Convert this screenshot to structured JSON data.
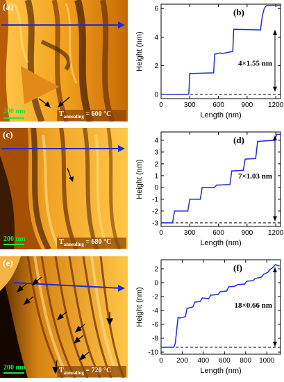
{
  "panels": [
    {
      "afm_label": "(a)",
      "plot_label": "(b)",
      "scale_bar": "200 nm",
      "temp_prefix": "T",
      "temp_sub": "annealing",
      "temp_value": "= 600 °C",
      "step_annotation": "4×1.55 nm"
    },
    {
      "afm_label": "(c)",
      "plot_label": "(d)",
      "scale_bar": "200 nm",
      "temp_prefix": "T",
      "temp_sub": "annealing",
      "temp_value": "= 680 °C",
      "step_annotation": "7×1.03 nm"
    },
    {
      "afm_label": "(e)",
      "plot_label": "(f)",
      "scale_bar": "200 nm",
      "temp_prefix": "T",
      "temp_sub": "annealing",
      "temp_value": "= 720 °C",
      "step_annotation": "18×0.66 nm"
    }
  ],
  "colors": {
    "profile": "#1f2bd6",
    "arrow": "#3040c8",
    "afm_dark": "#3a1a02",
    "afm_light": "#ffd25a"
  },
  "chart_data": [
    {
      "type": "line",
      "title": "",
      "xlabel": "Length (nm)",
      "ylabel": "Height (nm)",
      "xlim": [
        0,
        1250
      ],
      "ylim": [
        -0.3,
        6.3
      ],
      "xticks": [
        0,
        300,
        600,
        900,
        1200
      ],
      "yticks": [
        0,
        2,
        4,
        6
      ],
      "baseline": 0,
      "x": [
        0,
        290,
        300,
        550,
        560,
        620,
        640,
        750,
        760,
        1040,
        1060,
        1080,
        1100,
        1250
      ],
      "y": [
        0,
        0,
        1.45,
        1.5,
        2.8,
        2.9,
        2.85,
        3.0,
        4.55,
        4.5,
        5.5,
        6.0,
        6.2,
        6.2
      ]
    },
    {
      "type": "line",
      "title": "",
      "xlabel": "Length (nm)",
      "ylabel": "Height (nm)",
      "xlim": [
        0,
        1250
      ],
      "ylim": [
        -3.3,
        4.7
      ],
      "xticks": [
        0,
        300,
        600,
        900,
        1200
      ],
      "yticks": [
        -3,
        -2,
        -1,
        0,
        1,
        2,
        3,
        4
      ],
      "baseline": -3,
      "x": [
        0,
        120,
        140,
        280,
        300,
        410,
        430,
        560,
        580,
        720,
        740,
        860,
        880,
        990,
        1010,
        1190,
        1210,
        1250
      ],
      "y": [
        -3,
        -3,
        -2,
        -2,
        -1,
        -1,
        0,
        0,
        0.2,
        0.25,
        1.4,
        1.45,
        2.4,
        2.45,
        3.9,
        4.0,
        4.5,
        4.5
      ]
    },
    {
      "type": "line",
      "title": "",
      "xlabel": "Length (nm)",
      "ylabel": "Height (nm)",
      "xlim": [
        0,
        1130
      ],
      "ylim": [
        -10.3,
        3.3
      ],
      "xticks": [
        0,
        200,
        400,
        600,
        800,
        1000
      ],
      "yticks": [
        -10,
        -8,
        -6,
        -4,
        -2,
        0,
        2
      ],
      "baseline": -9.3,
      "x": [
        0,
        120,
        135,
        160,
        175,
        230,
        245,
        300,
        320,
        370,
        390,
        450,
        470,
        540,
        560,
        620,
        640,
        700,
        720,
        790,
        810,
        870,
        890,
        950,
        970,
        1010,
        1030,
        1060,
        1080,
        1100,
        1120
      ],
      "y": [
        -9.3,
        -9.3,
        -8.7,
        -5.0,
        -5.1,
        -4.9,
        -3.7,
        -3.5,
        -2.8,
        -2.7,
        -2.2,
        -2.3,
        -1.8,
        -1.7,
        -1.3,
        -1.2,
        -0.6,
        -0.5,
        -0.3,
        -0.2,
        0.2,
        0.3,
        0.6,
        0.8,
        1.2,
        1.5,
        1.9,
        2.2,
        2.6,
        2.5,
        2.4
      ]
    }
  ]
}
